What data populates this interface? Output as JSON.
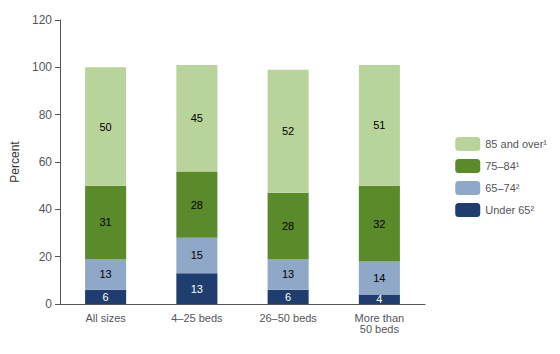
{
  "chart_data": {
    "type": "bar",
    "stacked": true,
    "categories": [
      "All sizes",
      "4–25 beds",
      "26–50 beds",
      "More than\n50 beds"
    ],
    "series": [
      {
        "name": "Under 65²",
        "color": "#1f3d6e",
        "values": [
          6,
          13,
          6,
          4
        ]
      },
      {
        "name": "65–74²",
        "color": "#8fa8c8",
        "values": [
          13,
          15,
          13,
          14
        ]
      },
      {
        "name": "75–84¹",
        "color": "#5a8a2a",
        "values": [
          31,
          28,
          28,
          32
        ]
      },
      {
        "name": "85 and over¹",
        "color": "#b8d49a",
        "values": [
          50,
          45,
          52,
          51
        ]
      }
    ],
    "ylabel": "Percent",
    "ylim": [
      0,
      120
    ],
    "yticks": [
      0,
      20,
      40,
      60,
      80,
      100,
      120
    ],
    "grid": false,
    "legend": "right",
    "data_labels": true
  }
}
